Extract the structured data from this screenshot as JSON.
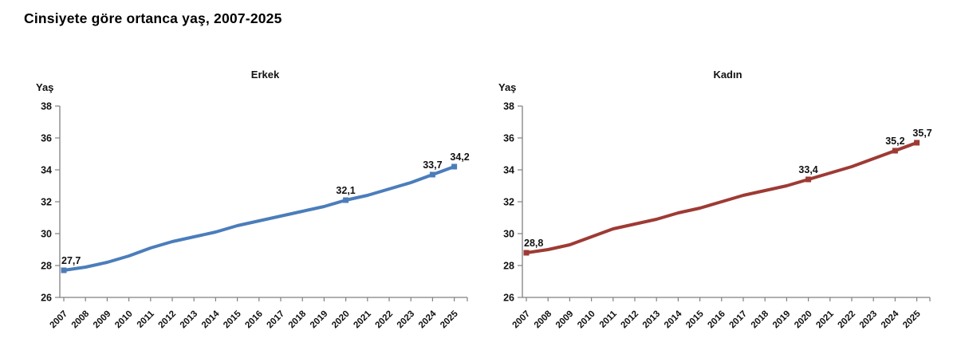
{
  "page": {
    "title": "Cinsiyete göre ortanca yaş, 2007-2025"
  },
  "colors": {
    "male_line": "#4b7dbb",
    "female_line": "#9e3a34",
    "axis": "#808080",
    "text": "#111111"
  },
  "chart_data": [
    {
      "type": "line",
      "title": "Erkek",
      "ylabel": "Yaş",
      "color": "#4b7dbb",
      "ylim": [
        26,
        38
      ],
      "yticks": [
        38,
        36,
        34,
        32,
        30,
        28,
        26
      ],
      "grid": false,
      "legend": "none",
      "x": [
        "2007",
        "2008",
        "2009",
        "2010",
        "2011",
        "2012",
        "2013",
        "2014",
        "2015",
        "2016",
        "2017",
        "2018",
        "2019",
        "2020",
        "2021",
        "2022",
        "2023",
        "2024",
        "2025"
      ],
      "values": [
        27.7,
        27.9,
        28.2,
        28.6,
        29.1,
        29.5,
        29.8,
        30.1,
        30.5,
        30.8,
        31.1,
        31.4,
        31.7,
        32.1,
        32.4,
        32.8,
        33.2,
        33.7,
        34.2
      ],
      "labeled_points": [
        {
          "year": "2007",
          "text": "27,7"
        },
        {
          "year": "2020",
          "text": "32,1"
        },
        {
          "year": "2024",
          "text": "33,7"
        },
        {
          "year": "2025",
          "text": "34,2"
        }
      ]
    },
    {
      "type": "line",
      "title": "Kadın",
      "ylabel": "Yaş",
      "color": "#9e3a34",
      "ylim": [
        26,
        38
      ],
      "yticks": [
        38,
        36,
        34,
        32,
        30,
        28,
        26
      ],
      "grid": false,
      "legend": "none",
      "x": [
        "2007",
        "2008",
        "2009",
        "2010",
        "2011",
        "2012",
        "2013",
        "2014",
        "2015",
        "2016",
        "2017",
        "2018",
        "2019",
        "2020",
        "2021",
        "2022",
        "2023",
        "2024",
        "2025"
      ],
      "values": [
        28.8,
        29.0,
        29.3,
        29.8,
        30.3,
        30.6,
        30.9,
        31.3,
        31.6,
        32.0,
        32.4,
        32.7,
        33.0,
        33.4,
        33.8,
        34.2,
        34.7,
        35.2,
        35.7
      ],
      "labeled_points": [
        {
          "year": "2007",
          "text": "28,8"
        },
        {
          "year": "2020",
          "text": "33,4"
        },
        {
          "year": "2024",
          "text": "35,2"
        },
        {
          "year": "2025",
          "text": "35,7"
        }
      ]
    }
  ]
}
